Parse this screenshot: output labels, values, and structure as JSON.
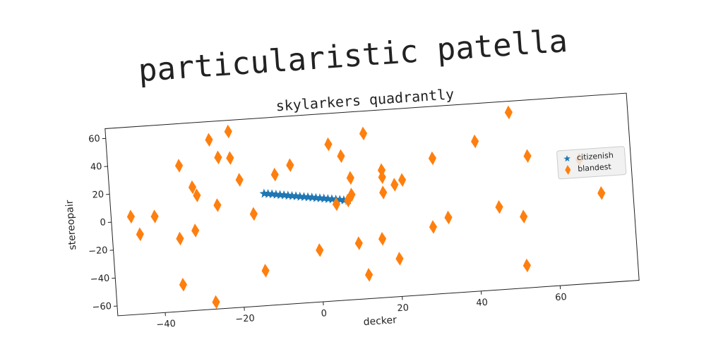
{
  "chart_data": {
    "type": "scatter",
    "suptitle": "particularistic patella",
    "title": "skylarkers quadrantly",
    "xlabel": "decker",
    "ylabel": "stereopair",
    "xlim": [
      -52,
      80
    ],
    "ylim": [
      -67,
      67
    ],
    "xticks": [
      {
        "value": -40,
        "label": "−40"
      },
      {
        "value": -20,
        "label": "−20"
      },
      0,
      20,
      40,
      60
    ],
    "yticks": [
      {
        "value": -60,
        "label": "−60"
      },
      {
        "value": -40,
        "label": "−40"
      },
      {
        "value": -20,
        "label": "−20"
      },
      0,
      20,
      40,
      60
    ],
    "legend": "center right",
    "series": [
      {
        "name": "citizenish",
        "color": "#1f77b4",
        "marker": "star",
        "x": [
          -13,
          -12,
          -11,
          -10,
          -9,
          -8,
          -7,
          -6,
          -5,
          -4,
          -3,
          -2,
          -1,
          0,
          1,
          2,
          3,
          4,
          5,
          6,
          7,
          8
        ],
        "values": [
          13,
          12.6,
          12.2,
          11.7,
          11.3,
          10.9,
          10.4,
          10,
          9.6,
          9.1,
          8.7,
          8.3,
          7.9,
          7.4,
          7,
          6.6,
          6.1,
          5.7,
          5.3,
          4.9,
          4.4,
          4
        ]
      },
      {
        "name": "blandest",
        "color": "#ff7f0e",
        "marker": "diamond",
        "x": [
          -47,
          -45,
          -41,
          -34,
          -35,
          -35,
          -31,
          -30,
          -31,
          -26,
          -25,
          -24,
          -21,
          -21,
          -19,
          -16,
          -27,
          -14,
          -10,
          -6,
          0,
          4,
          7,
          9,
          9,
          8,
          5,
          10,
          13,
          12,
          16,
          17,
          17,
          17,
          20,
          22,
          20,
          30,
          29,
          33,
          41,
          46,
          50,
          52,
          54,
          52,
          67,
          72
        ],
        "values": [
          3,
          -10,
          2,
          37,
          -15,
          -48,
          21,
          15,
          -10,
          54,
          7,
          41,
          40,
          59,
          24,
          -1,
          -62,
          -42,
          26,
          32,
          -30,
          45,
          36,
          20,
          8,
          4,
          2,
          -27,
          51,
          -50,
          -25,
          8,
          24,
          19,
          13,
          16,
          -40,
          30,
          -19,
          -13,
          40,
          -8,
          59,
          -16,
          27,
          -51,
          22,
          -3
        ]
      }
    ]
  }
}
